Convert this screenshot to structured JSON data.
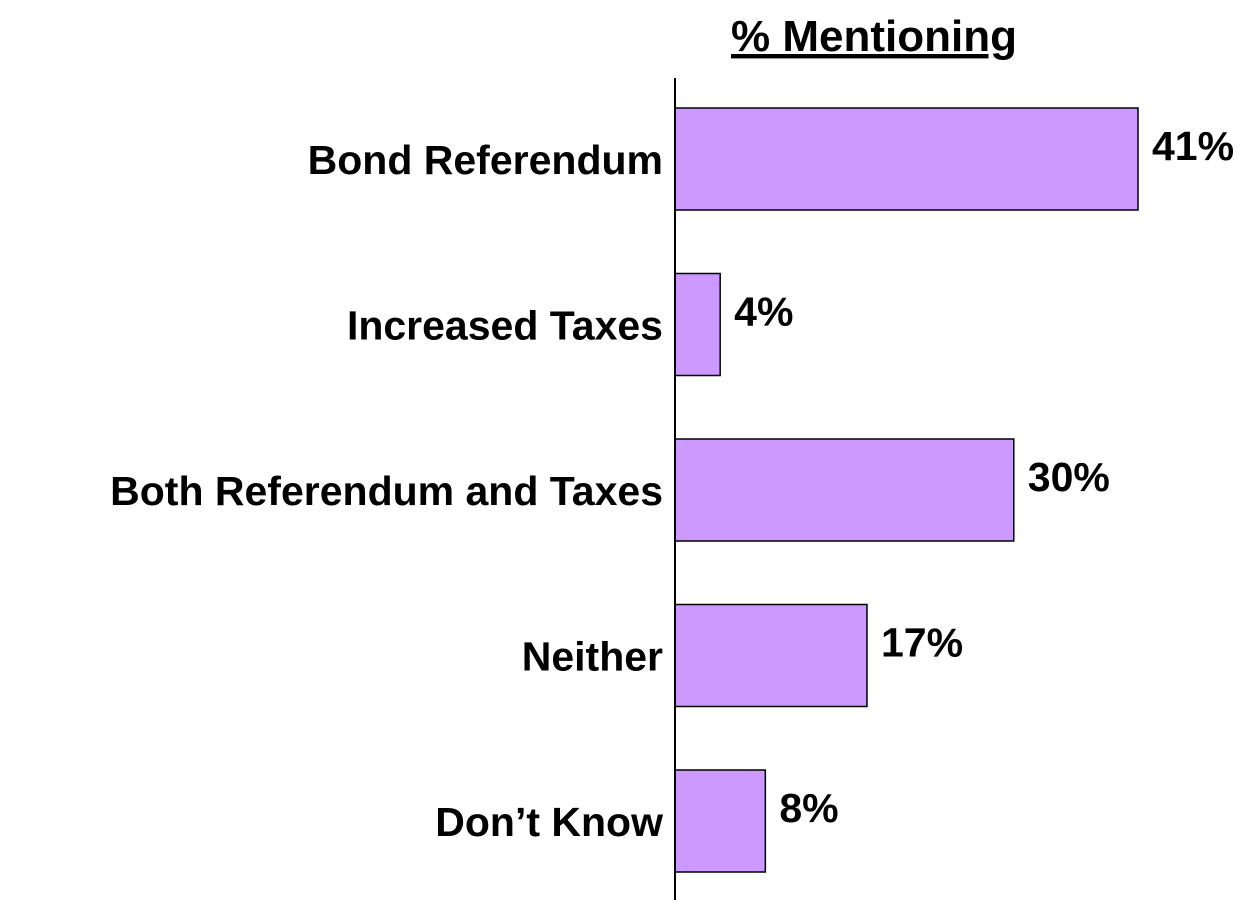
{
  "chart_data": {
    "type": "bar",
    "orientation": "horizontal",
    "title": "% Mentioning",
    "categories": [
      "Bond Referendum",
      "Increased Taxes",
      "Both Referendum and Taxes",
      "Neither",
      "Don’t Know"
    ],
    "values": [
      41,
      4,
      30,
      17,
      8
    ],
    "value_labels": [
      "41%",
      "4%",
      "30%",
      "17%",
      "8%"
    ],
    "xlim": [
      0,
      41
    ],
    "grid": false,
    "legend": "none",
    "bar_color": "#cc99ff",
    "bar_edge_color": "#000000"
  }
}
